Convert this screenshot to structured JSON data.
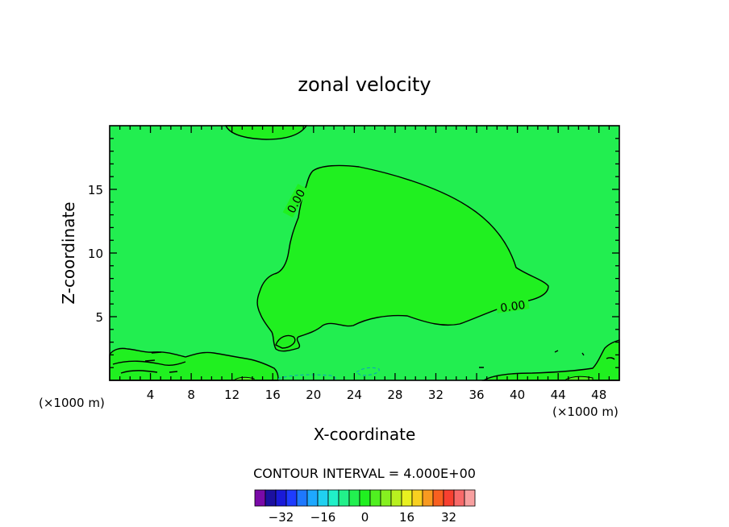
{
  "chart_data": {
    "type": "contour",
    "title": "zonal velocity",
    "xlabel": "X-coordinate",
    "ylabel": "Z-coordinate",
    "x_unit": "(×1000 m)",
    "xlim": [
      0,
      50
    ],
    "ylim": [
      0,
      20
    ],
    "x_ticks": [
      4,
      8,
      12,
      16,
      20,
      24,
      28,
      32,
      36,
      40,
      44,
      48
    ],
    "y_ticks": [
      5,
      10,
      15
    ],
    "contour_interval_text": "CONTOUR INTERVAL = 4.000E+00",
    "contour_labels": [
      "0.00",
      "0.00"
    ],
    "colorbar": {
      "levels": [
        -40,
        -36,
        -32,
        -28,
        -24,
        -20,
        -16,
        -12,
        -8,
        -4,
        0,
        4,
        8,
        12,
        16,
        20,
        24,
        28,
        32,
        36,
        40
      ],
      "tick_labels": [
        -32,
        -16,
        0,
        16,
        32
      ],
      "colors": [
        "#7a0aa8",
        "#1c10a0",
        "#1a1ad8",
        "#1e3cff",
        "#1e78ff",
        "#1ea8ff",
        "#20d0f0",
        "#20f0c8",
        "#22f08a",
        "#22f050",
        "#20f020",
        "#50f020",
        "#86f020",
        "#b8f020",
        "#e8f020",
        "#f8d020",
        "#f89a20",
        "#f86020",
        "#f84030",
        "#f86a6a",
        "#f8a0a0"
      ]
    },
    "fill_colors": {
      "background_field": "#22ee50",
      "positive_region": "#20f020",
      "weak_positive": "#50f020"
    }
  }
}
